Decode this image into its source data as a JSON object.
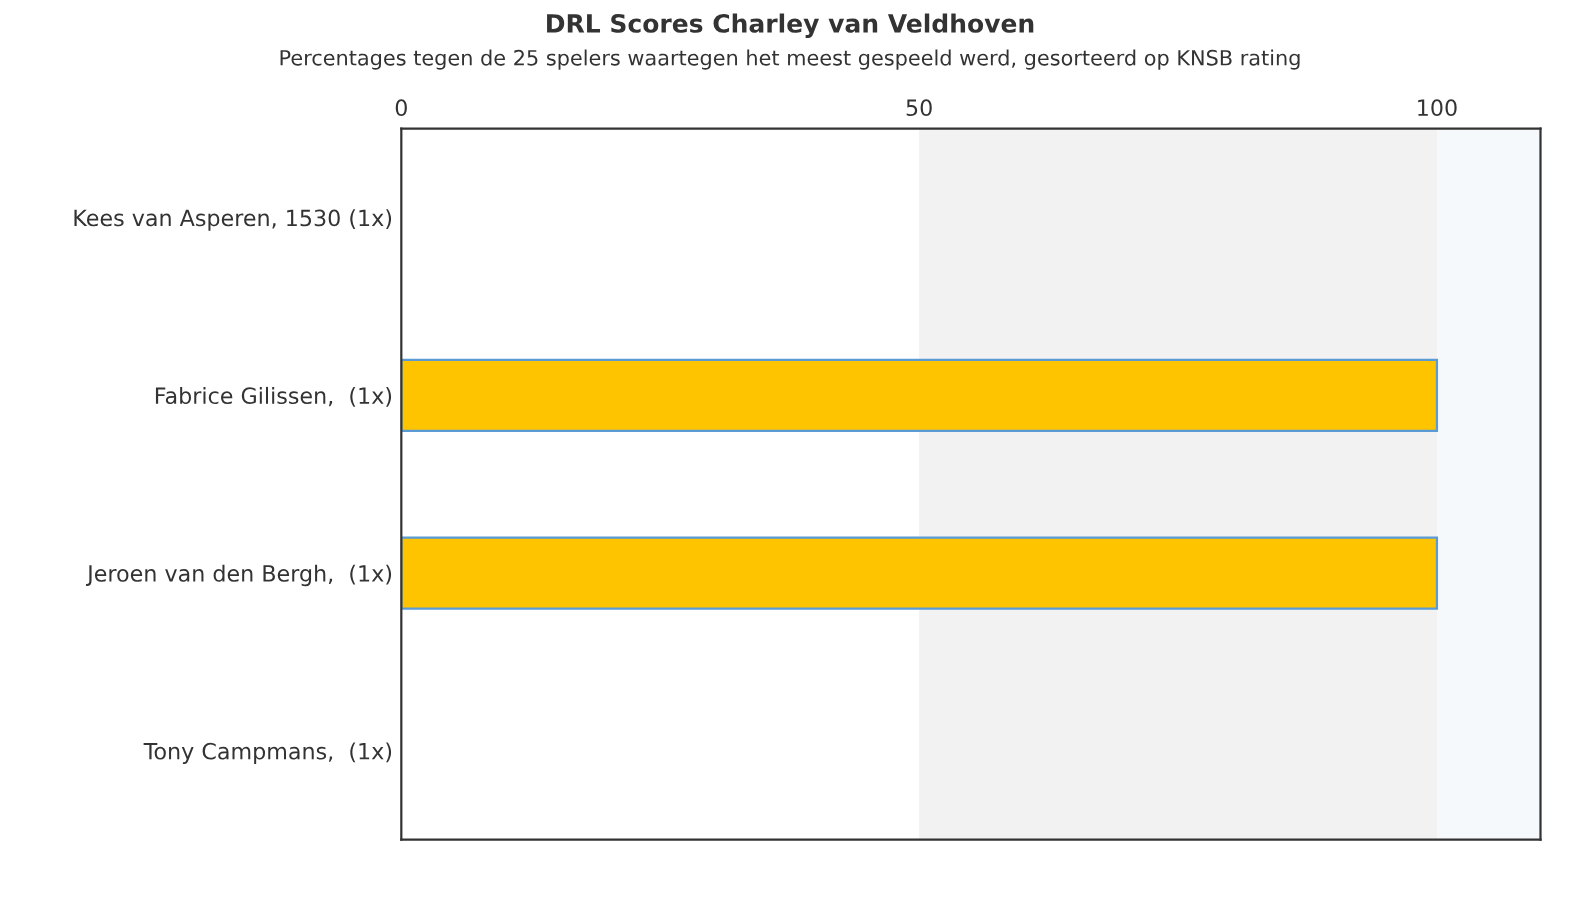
{
  "chart_data": {
    "type": "bar",
    "orientation": "horizontal",
    "title": "DRL Scores Charley van Veldhoven",
    "subtitle": "Percentages tegen de 25 spelers waartegen het meest gespeeld werd, gesorteerd op KNSB rating",
    "categories": [
      "Kees van Asperen, 1530 (1x)",
      "Fabrice Gilissen,  (1x)",
      "Jeroen van den Bergh,  (1x)",
      "Tony Campmans,  (1x)"
    ],
    "values": [
      0,
      100,
      100,
      0
    ],
    "color": "#ffc400",
    "xlim": [
      0,
      110
    ],
    "xticks": [
      0,
      50,
      100
    ],
    "bands": [
      {
        "axis": "x",
        "from": 50,
        "to": 100,
        "color": "#f2f2f2"
      },
      {
        "axis": "x",
        "from": 100,
        "to": 110,
        "color": "#f6f9fc"
      }
    ]
  }
}
